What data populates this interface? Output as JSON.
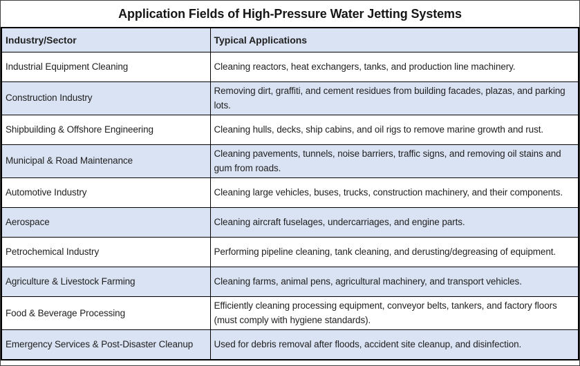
{
  "title": "Application Fields of High-Pressure Water Jetting Systems",
  "colors": {
    "stripe": "#dae3f3",
    "header_bg": "#dae3f3",
    "border": "#000000",
    "text": "#1f1f1f"
  },
  "table": {
    "columns": [
      {
        "label": "Industry/Sector"
      },
      {
        "label": "Typical Applications"
      }
    ],
    "rows": [
      {
        "sector": "Industrial Equipment Cleaning",
        "application": "Cleaning reactors, heat exchangers, tanks, and production line machinery."
      },
      {
        "sector": "Construction Industry",
        "application": "Removing dirt, graffiti, and cement residues from building facades, plazas, and parking lots."
      },
      {
        "sector": "Shipbuilding & Offshore Engineering",
        "application": "Cleaning hulls, decks, ship cabins, and oil rigs to remove marine growth and rust."
      },
      {
        "sector": "Municipal & Road Maintenance",
        "application": "Cleaning pavements, tunnels, noise barriers, traffic signs, and removing oil stains and gum from roads."
      },
      {
        "sector": "Automotive Industry",
        "application": "Cleaning large vehicles, buses, trucks, construction machinery, and their components."
      },
      {
        "sector": "Aerospace",
        "application": "Cleaning aircraft fuselages, undercarriages, and engine parts."
      },
      {
        "sector": "Petrochemical Industry",
        "application": "Performing pipeline cleaning, tank cleaning, and derusting/degreasing of equipment."
      },
      {
        "sector": "Agriculture & Livestock Farming",
        "application": "Cleaning farms, animal pens, agricultural machinery, and transport vehicles."
      },
      {
        "sector": "Food & Beverage Processing",
        "application": "Efficiently cleaning processing equipment, conveyor belts, tankers, and factory floors (must comply with hygiene standards)."
      },
      {
        "sector": "Emergency Services & Post-Disaster Cleanup",
        "application": "Used for debris removal after floods, accident site cleanup, and disinfection."
      }
    ]
  }
}
